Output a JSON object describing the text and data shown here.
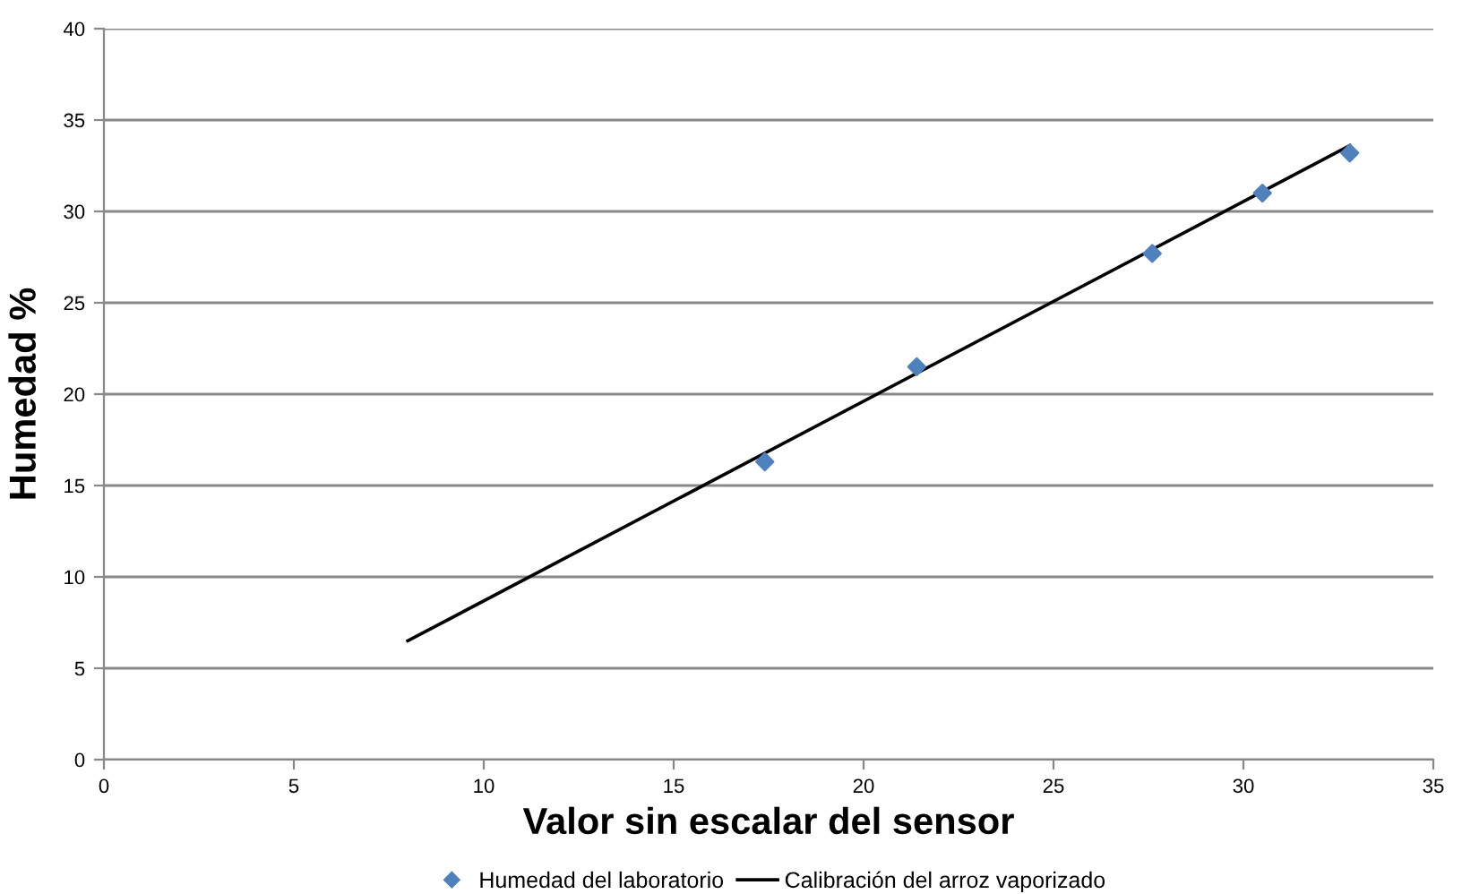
{
  "chart_data": {
    "type": "scatter",
    "xlabel": "Valor sin escalar del sensor",
    "ylabel": "Humedad %",
    "series": [
      {
        "name": "Humedad del laboratorio",
        "color": "#4f81bd",
        "marker": "diamond",
        "x": [
          17.4,
          21.4,
          27.6,
          30.5,
          32.8
        ],
        "values": [
          16.3,
          21.5,
          27.7,
          31.0,
          33.2
        ]
      },
      {
        "name": "Calibración del arroz vaporizado",
        "type": "line",
        "color": "#000000",
        "marker": "none",
        "line_style": "solid",
        "x": [
          8,
          32.8
        ],
        "values": [
          6.5,
          33.6
        ]
      }
    ],
    "xlim": [
      0,
      35
    ],
    "xticks": [
      0,
      5,
      10,
      15,
      20,
      25,
      30,
      35
    ],
    "ylim": [
      0,
      40
    ],
    "yticks": [
      0,
      5,
      10,
      15,
      20,
      25,
      30,
      35,
      40
    ],
    "grid": "y",
    "legend": "bottom"
  }
}
